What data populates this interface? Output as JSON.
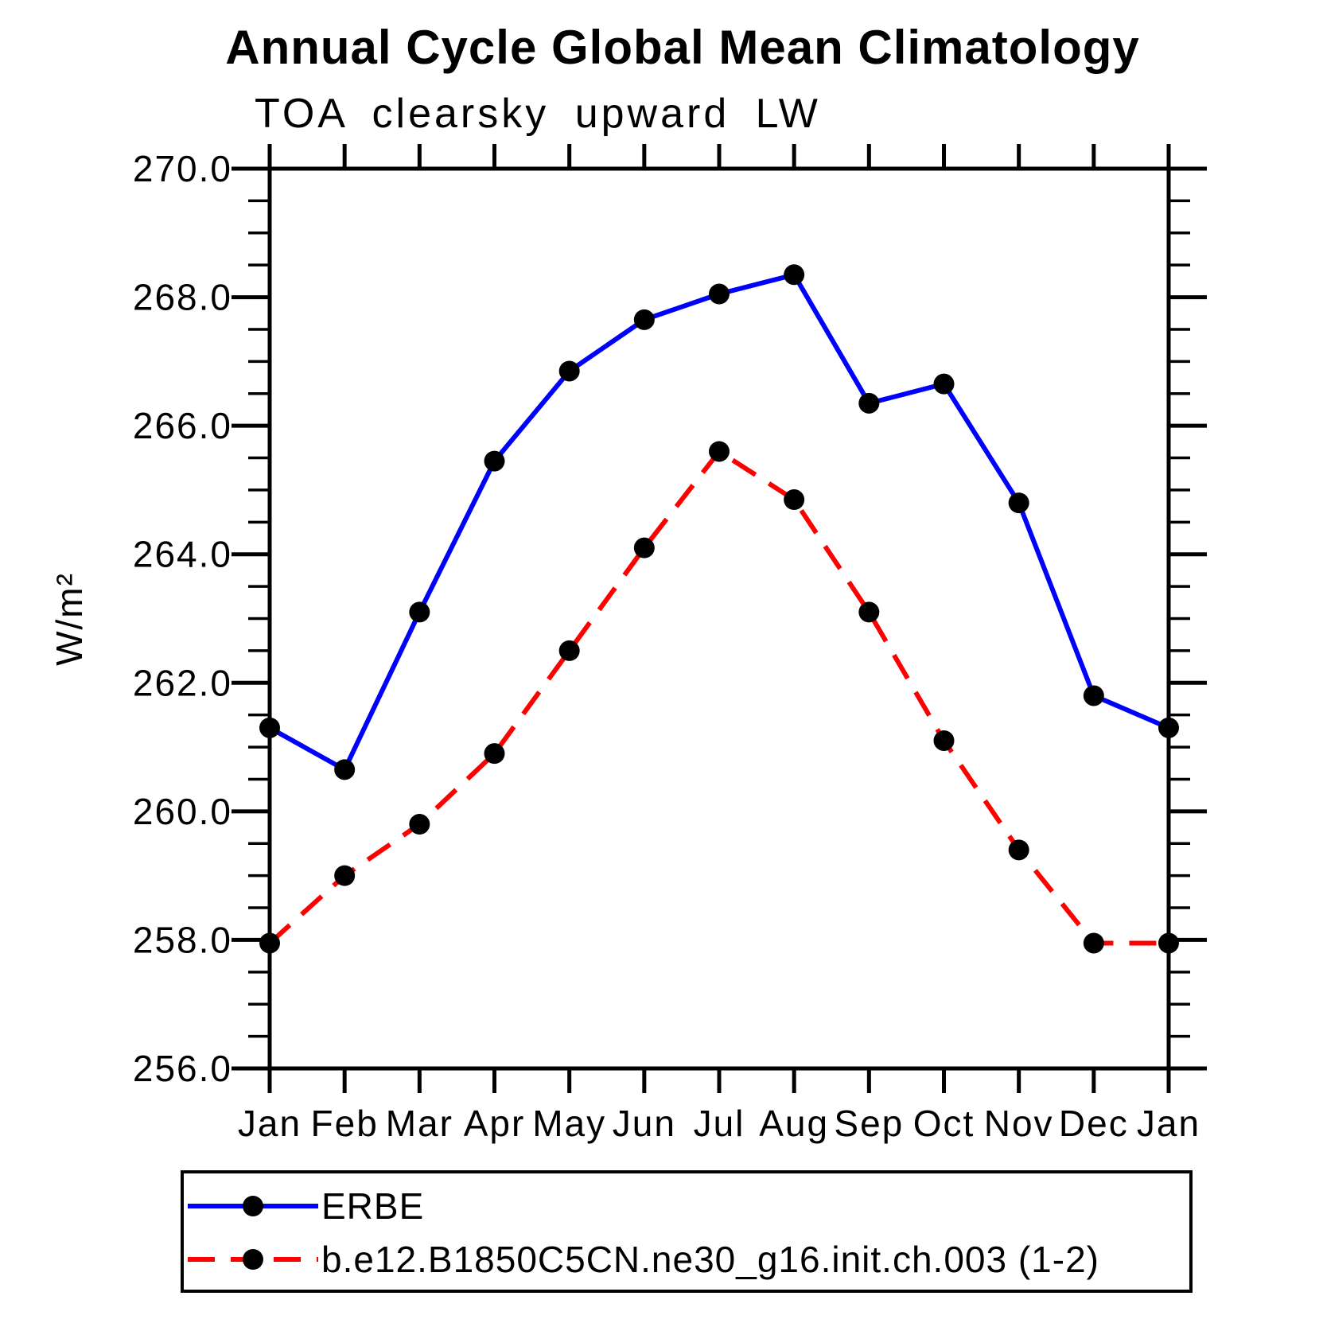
{
  "title": "Annual Cycle Global Mean Climatology",
  "subtitle": "TOA clearsky upward LW",
  "colors": {
    "erbe_line": "#0000ff",
    "model_line": "#ff0000",
    "marker": "#000000",
    "axis": "#000000",
    "background": "#ffffff"
  },
  "chart_data": {
    "type": "line",
    "title": "Annual Cycle Global Mean Climatology",
    "subtitle": "TOA clearsky upward LW",
    "xlabel": "",
    "ylabel": "W/m²",
    "x_categories": [
      "Jan",
      "Feb",
      "Mar",
      "Apr",
      "May",
      "Jun",
      "Jul",
      "Aug",
      "Sep",
      "Oct",
      "Nov",
      "Dec",
      "Jan"
    ],
    "ylim": [
      256.0,
      270.0
    ],
    "ytick_labels": [
      "256.0",
      "258.0",
      "260.0",
      "262.0",
      "264.0",
      "266.0",
      "268.0",
      "270.0"
    ],
    "ytick_major_interval": 2.0,
    "ytick_minor_interval": 0.5,
    "grid": false,
    "legend_position": "bottom-left",
    "series": [
      {
        "name": "ERBE",
        "color": "#0000ff",
        "style": "solid",
        "marker": "circle",
        "marker_color": "#000000",
        "values": [
          261.3,
          260.65,
          263.1,
          265.45,
          266.85,
          267.65,
          268.05,
          268.35,
          266.35,
          266.65,
          264.8,
          261.8,
          261.3
        ]
      },
      {
        "name": "b.e12.B1850C5CN.ne30_g16.init.ch.003 (1-2)",
        "color": "#ff0000",
        "style": "dashed",
        "marker": "circle",
        "marker_color": "#000000",
        "values": [
          257.95,
          259.0,
          259.8,
          260.9,
          262.5,
          264.1,
          265.6,
          264.85,
          263.1,
          261.1,
          259.4,
          257.95,
          257.95
        ]
      }
    ]
  }
}
